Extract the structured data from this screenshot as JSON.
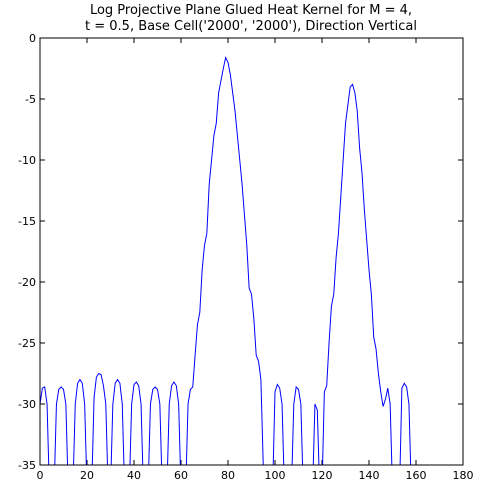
{
  "chart_data": {
    "type": "line",
    "title": [
      "Log Projective Plane Glued Heat Kernel for M = 4,",
      "t = 0.5, Base Cell('2000', '2000'), Direction Vertical"
    ],
    "x": [
      0,
      1,
      2,
      3,
      4,
      6,
      7,
      8,
      9,
      10,
      11,
      12,
      14,
      15,
      16,
      17,
      18,
      19,
      20,
      22,
      23,
      24,
      25,
      26,
      27,
      28,
      29,
      30,
      31,
      32,
      33,
      34,
      35,
      36,
      38,
      39,
      40,
      41,
      42,
      43,
      44,
      46,
      47,
      48,
      49,
      50,
      51,
      52,
      54,
      55,
      56,
      57,
      58,
      59,
      60,
      62,
      63,
      64,
      65,
      66,
      67,
      68,
      69,
      70,
      71,
      72,
      73,
      74,
      75,
      76,
      77,
      78,
      79,
      80,
      81,
      82,
      83,
      84,
      85,
      86,
      87,
      88,
      89,
      90,
      91,
      92,
      93,
      94,
      95,
      97,
      99,
      100,
      101,
      102,
      103,
      104,
      107,
      108,
      109,
      110,
      111,
      112,
      116,
      117,
      118,
      119,
      120,
      121,
      122,
      123,
      124,
      125,
      126,
      127,
      128,
      129,
      130,
      131,
      132,
      133,
      134,
      135,
      136,
      137,
      138,
      139,
      140,
      141,
      142,
      143,
      144,
      145,
      146,
      147,
      148,
      149,
      150,
      153,
      154,
      155,
      156,
      157,
      158
    ],
    "series": [
      {
        "color": "#0000ff",
        "values": [
          -30,
          -28.7,
          -28.6,
          -30,
          -37,
          -37,
          -30,
          -28.8,
          -28.6,
          -28.8,
          -30,
          -37,
          -37,
          -30,
          -28.3,
          -28,
          -28.3,
          -30,
          -37,
          -37,
          -29.5,
          -27.8,
          -27.5,
          -27.6,
          -28.5,
          -30,
          -37,
          -37,
          -30,
          -28.3,
          -28,
          -28.3,
          -30,
          -37,
          -37,
          -30,
          -28.4,
          -28.2,
          -28.5,
          -30,
          -37,
          -37,
          -30,
          -28.8,
          -28.6,
          -28.8,
          -30,
          -37,
          -37,
          -30,
          -28.5,
          -28.2,
          -28.5,
          -30,
          -37,
          -37,
          -30,
          -28.8,
          -28.6,
          -26,
          -23.5,
          -22.5,
          -19,
          -17,
          -16,
          -12,
          -10,
          -8,
          -7,
          -4.5,
          -3.5,
          -2.5,
          -1.6,
          -2,
          -3,
          -4.5,
          -6,
          -8,
          -10,
          -12,
          -14.5,
          -17,
          -20.5,
          -21,
          -23,
          -26,
          -26.5,
          -28,
          -35,
          -37,
          -37,
          -29,
          -28.4,
          -28.7,
          -30,
          -37,
          -37,
          -30,
          -28.6,
          -28.8,
          -30,
          -37,
          -37,
          -30,
          -30.5,
          -37,
          -37,
          -29,
          -28.5,
          -25,
          -22,
          -21,
          -18,
          -16,
          -13,
          -10,
          -7,
          -5.5,
          -4,
          -3.8,
          -4.5,
          -6,
          -9,
          -11,
          -14,
          -16.5,
          -19,
          -21,
          -24.5,
          -25.5,
          -27.5,
          -29,
          -30.2,
          -29.6,
          -28.7,
          -30,
          -37,
          -37,
          -28.7,
          -28.3,
          -28.6,
          -30,
          -37
        ]
      }
    ],
    "xlim": [
      0,
      180
    ],
    "xticks": [
      0,
      20,
      40,
      60,
      80,
      100,
      120,
      140,
      160,
      180
    ],
    "ylim": [
      -35,
      0
    ],
    "yticks": [
      -35,
      -30,
      -25,
      -20,
      -15,
      -10,
      -5,
      0
    ]
  }
}
